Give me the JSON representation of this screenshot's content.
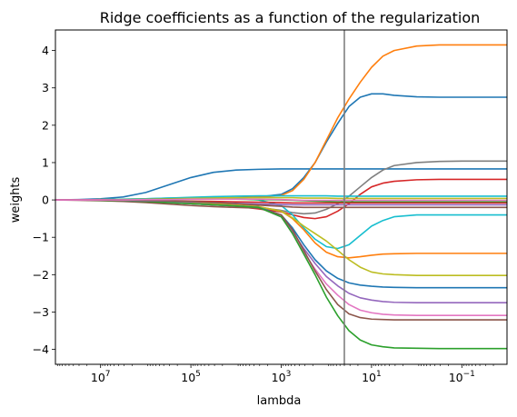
{
  "chart_data": {
    "type": "line",
    "title": "Ridge coefficients as a function of the regularization",
    "xlabel": "lambda",
    "ylabel": "weights",
    "x_scale": "log",
    "x_reversed": true,
    "xlim": [
      100000000,
      0.01
    ],
    "ylim": [
      -4.4,
      4.55
    ],
    "xticks": [
      {
        "value": 10000000,
        "base": "10",
        "exp": "7"
      },
      {
        "value": 100000,
        "base": "10",
        "exp": "5"
      },
      {
        "value": 1000,
        "base": "10",
        "exp": "3"
      },
      {
        "value": 10,
        "base": "10",
        "exp": "1"
      },
      {
        "value": 0.1,
        "base": "10",
        "exp": "−1"
      }
    ],
    "yticks": [
      {
        "value": 4,
        "label": "4"
      },
      {
        "value": 3,
        "label": "3"
      },
      {
        "value": 2,
        "label": "2"
      },
      {
        "value": 1,
        "label": "1"
      },
      {
        "value": 0,
        "label": "0"
      },
      {
        "value": -1,
        "label": "−1"
      },
      {
        "value": -2,
        "label": "−2"
      },
      {
        "value": -3,
        "label": "−3"
      },
      {
        "value": -4,
        "label": "−4"
      }
    ],
    "grid": false,
    "vline": {
      "x": 40,
      "color": "#808080"
    },
    "x": [
      100000000,
      31622777,
      10000000,
      3162278,
      1000000,
      316228,
      100000,
      31623,
      10000,
      3162,
      1000,
      562,
      316,
      178,
      100,
      56,
      31.6,
      17.8,
      10,
      5.6,
      3.16,
      1,
      0.316,
      0.1,
      0.0316,
      0.01
    ],
    "series": [
      {
        "color": "#1f77b4",
        "values": [
          0,
          0.01,
          0.03,
          0.08,
          0.2,
          0.4,
          0.6,
          0.74,
          0.8,
          0.82,
          0.83,
          0.83,
          0.83,
          0.83,
          0.83,
          0.83,
          0.83,
          0.83,
          0.83,
          0.83,
          0.83,
          0.83,
          0.83,
          0.83,
          0.83,
          0.83
        ]
      },
      {
        "color": "#1f77b4",
        "values": [
          0,
          0,
          0.01,
          0.01,
          0.02,
          0.03,
          0.04,
          0.05,
          0.06,
          0.08,
          0.15,
          0.3,
          0.6,
          1.0,
          1.55,
          2.05,
          2.5,
          2.75,
          2.84,
          2.84,
          2.8,
          2.76,
          2.75,
          2.75,
          2.75,
          2.75
        ]
      },
      {
        "color": "#ff7f0e",
        "values": [
          0,
          0,
          0.01,
          0.01,
          0.02,
          0.03,
          0.04,
          0.05,
          0.06,
          0.07,
          0.12,
          0.25,
          0.55,
          1.0,
          1.6,
          2.2,
          2.7,
          3.15,
          3.55,
          3.85,
          4.0,
          4.12,
          4.15,
          4.15,
          4.15,
          4.15
        ]
      },
      {
        "color": "#7f7f7f",
        "values": [
          0,
          0,
          -0.01,
          -0.02,
          -0.04,
          -0.07,
          -0.1,
          -0.13,
          -0.16,
          -0.2,
          -0.28,
          -0.34,
          -0.37,
          -0.35,
          -0.25,
          -0.1,
          0.1,
          0.35,
          0.6,
          0.8,
          0.92,
          1.0,
          1.03,
          1.04,
          1.04,
          1.04
        ]
      },
      {
        "color": "#d62728",
        "values": [
          0,
          0,
          -0.01,
          -0.02,
          -0.03,
          -0.05,
          -0.08,
          -0.12,
          -0.17,
          -0.24,
          -0.32,
          -0.4,
          -0.47,
          -0.5,
          -0.45,
          -0.3,
          -0.1,
          0.15,
          0.35,
          0.45,
          0.5,
          0.54,
          0.55,
          0.55,
          0.55,
          0.55
        ]
      },
      {
        "color": "#17becf",
        "values": [
          0,
          0,
          0.01,
          0.02,
          0.03,
          0.05,
          0.06,
          0.06,
          0.04,
          0.0,
          -0.15,
          -0.4,
          -0.75,
          -1.05,
          -1.25,
          -1.3,
          -1.2,
          -0.95,
          -0.7,
          -0.55,
          -0.45,
          -0.4,
          -0.4,
          -0.4,
          -0.4,
          -0.4
        ]
      },
      {
        "color": "#ff7f0e",
        "values": [
          0,
          0,
          -0.01,
          -0.02,
          -0.03,
          -0.05,
          -0.08,
          -0.11,
          -0.14,
          -0.18,
          -0.3,
          -0.5,
          -0.8,
          -1.15,
          -1.4,
          -1.52,
          -1.55,
          -1.52,
          -1.48,
          -1.45,
          -1.44,
          -1.43,
          -1.43,
          -1.43,
          -1.43,
          -1.43
        ]
      },
      {
        "color": "#bcbd22",
        "values": [
          0,
          0,
          -0.01,
          -0.02,
          -0.03,
          -0.05,
          -0.08,
          -0.11,
          -0.14,
          -0.18,
          -0.3,
          -0.48,
          -0.7,
          -0.9,
          -1.1,
          -1.35,
          -1.6,
          -1.8,
          -1.93,
          -1.98,
          -2.0,
          -2.02,
          -2.02,
          -2.02,
          -2.02,
          -2.02
        ]
      },
      {
        "color": "#1f77b4",
        "values": [
          0,
          0,
          -0.01,
          -0.02,
          -0.04,
          -0.07,
          -0.1,
          -0.13,
          -0.16,
          -0.2,
          -0.4,
          -0.75,
          -1.2,
          -1.6,
          -1.9,
          -2.1,
          -2.22,
          -2.28,
          -2.31,
          -2.33,
          -2.34,
          -2.35,
          -2.35,
          -2.35,
          -2.35,
          -2.35
        ]
      },
      {
        "color": "#9467bd",
        "values": [
          0,
          0,
          -0.01,
          -0.02,
          -0.04,
          -0.07,
          -0.1,
          -0.13,
          -0.16,
          -0.2,
          -0.45,
          -0.85,
          -1.3,
          -1.7,
          -2.05,
          -2.3,
          -2.5,
          -2.62,
          -2.68,
          -2.72,
          -2.74,
          -2.75,
          -2.75,
          -2.75,
          -2.75,
          -2.75
        ]
      },
      {
        "color": "#e377c2",
        "values": [
          0,
          0,
          -0.01,
          -0.02,
          -0.04,
          -0.07,
          -0.1,
          -0.13,
          -0.16,
          -0.2,
          -0.45,
          -0.9,
          -1.4,
          -1.85,
          -2.25,
          -2.55,
          -2.8,
          -2.95,
          -3.02,
          -3.06,
          -3.08,
          -3.09,
          -3.09,
          -3.09,
          -3.09,
          -3.09
        ]
      },
      {
        "color": "#8c564b",
        "values": [
          0,
          -0.01,
          -0.02,
          -0.04,
          -0.07,
          -0.11,
          -0.15,
          -0.18,
          -0.2,
          -0.22,
          -0.4,
          -0.8,
          -1.35,
          -1.9,
          -2.4,
          -2.8,
          -3.05,
          -3.15,
          -3.19,
          -3.2,
          -3.21,
          -3.21,
          -3.21,
          -3.21,
          -3.21,
          -3.21
        ]
      },
      {
        "color": "#2ca02c",
        "values": [
          0,
          0,
          -0.01,
          -0.02,
          -0.04,
          -0.07,
          -0.1,
          -0.13,
          -0.16,
          -0.2,
          -0.45,
          -0.9,
          -1.45,
          -2.0,
          -2.6,
          -3.1,
          -3.5,
          -3.75,
          -3.88,
          -3.93,
          -3.96,
          -3.97,
          -3.98,
          -3.98,
          -3.98,
          -3.98
        ]
      },
      {
        "color": "#17becf",
        "values": [
          0,
          0,
          0.01,
          0.02,
          0.03,
          0.05,
          0.07,
          0.09,
          0.1,
          0.11,
          0.11,
          0.11,
          0.11,
          0.11,
          0.11,
          0.1,
          0.1,
          0.1,
          0.1,
          0.1,
          0.1,
          0.1,
          0.1,
          0.1,
          0.1,
          0.1
        ]
      },
      {
        "color": "#bcbd22",
        "values": [
          0,
          0,
          0.01,
          0.01,
          0.02,
          0.03,
          0.04,
          0.05,
          0.06,
          0.06,
          0.06,
          0.06,
          0.05,
          0.05,
          0.05,
          0.04,
          0.04,
          0.04,
          0.04,
          0.04,
          0.04,
          0.04,
          0.04,
          0.04,
          0.04,
          0.04
        ]
      },
      {
        "color": "#2ca02c",
        "values": [
          0,
          0,
          0,
          0.01,
          0.01,
          0.02,
          0.02,
          0.02,
          0.02,
          0.01,
          0.0,
          -0.01,
          -0.02,
          -0.03,
          -0.04,
          -0.05,
          -0.05,
          -0.05,
          -0.05,
          -0.05,
          -0.05,
          -0.05,
          -0.05,
          -0.05,
          -0.05,
          -0.05
        ]
      },
      {
        "color": "#d62728",
        "values": [
          0,
          0,
          0,
          -0.01,
          -0.01,
          -0.02,
          -0.03,
          -0.04,
          -0.05,
          -0.06,
          -0.07,
          -0.08,
          -0.08,
          -0.08,
          -0.08,
          -0.08,
          -0.08,
          -0.08,
          -0.08,
          -0.08,
          -0.08,
          -0.08,
          -0.08,
          -0.08,
          -0.08,
          -0.08
        ]
      },
      {
        "color": "#9467bd",
        "values": [
          0,
          0,
          0,
          -0.01,
          -0.02,
          -0.03,
          -0.05,
          -0.07,
          -0.09,
          -0.11,
          -0.12,
          -0.13,
          -0.13,
          -0.13,
          -0.13,
          -0.13,
          -0.13,
          -0.13,
          -0.13,
          -0.13,
          -0.13,
          -0.13,
          -0.13,
          -0.13,
          -0.13,
          -0.13
        ]
      },
      {
        "color": "#8c564b",
        "values": [
          0,
          0,
          0,
          0,
          -0.01,
          -0.02,
          -0.04,
          -0.07,
          -0.1,
          -0.14,
          -0.17,
          -0.19,
          -0.2,
          -0.2,
          -0.2,
          -0.2,
          -0.2,
          -0.2,
          -0.2,
          -0.2,
          -0.2,
          -0.2,
          -0.2,
          -0.2,
          -0.2,
          -0.2
        ]
      },
      {
        "color": "#e377c2",
        "values": [
          0,
          0,
          0,
          0,
          0.01,
          0.01,
          0.02,
          0.02,
          0.02,
          0.02,
          0.01,
          0.0,
          -0.01,
          -0.01,
          -0.01,
          -0.01,
          -0.01,
          -0.01,
          -0.01,
          -0.01,
          -0.01,
          -0.01,
          -0.01,
          -0.01,
          -0.01,
          -0.01
        ]
      }
    ]
  }
}
